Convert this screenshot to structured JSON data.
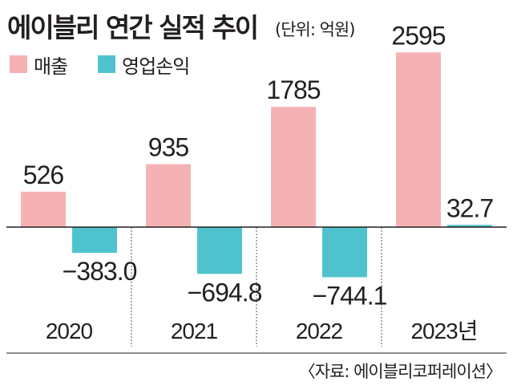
{
  "title": "에이블리 연간 실적 추이",
  "unit_note": "(단위: 억원)",
  "source": "〈자료: 에이블리코퍼레이션〉",
  "colors": {
    "revenue": "#f5b2b4",
    "operating_profit": "#4fc3cd",
    "axis": "#231f20",
    "divider": "#555555"
  },
  "chart_data": {
    "type": "bar",
    "categories": [
      "2020",
      "2021",
      "2022",
      "2023년"
    ],
    "series": [
      {
        "name": "매출",
        "values": [
          526,
          935,
          1785,
          2595
        ],
        "labels": [
          "526",
          "935",
          "1785",
          "2595"
        ]
      },
      {
        "name": "영업손익",
        "values": [
          -383.0,
          -694.8,
          -744.1,
          32.7
        ],
        "labels": [
          "−383.0",
          "−694.8",
          "−744.1",
          "32.7"
        ]
      }
    ],
    "legend": "top-left",
    "grid": false
  }
}
